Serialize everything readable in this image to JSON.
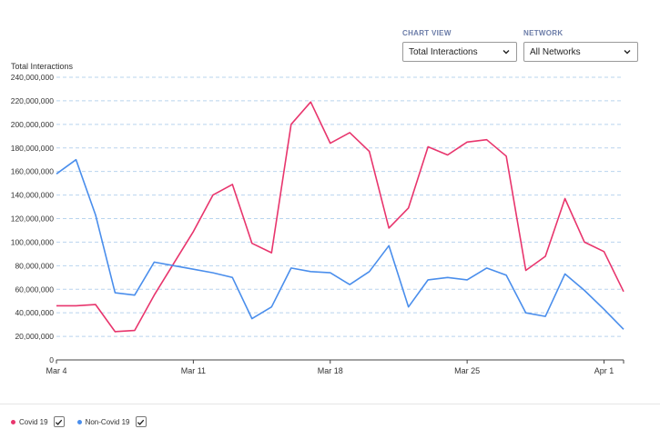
{
  "controls": {
    "chart_view": {
      "label": "CHART VIEW",
      "value": "Total Interactions"
    },
    "network": {
      "label": "NETWORK",
      "value": "All Networks"
    }
  },
  "chart_data": {
    "type": "line",
    "ylabel": "Total Interactions",
    "ylim": [
      0,
      240000000
    ],
    "yticks": [
      0,
      20000000,
      40000000,
      60000000,
      80000000,
      100000000,
      120000000,
      140000000,
      160000000,
      180000000,
      200000000,
      220000000,
      240000000
    ],
    "ytick_labels": [
      "0",
      "20,000,000",
      "40,000,000",
      "60,000,000",
      "80,000,000",
      "100,000,000",
      "120,000,000",
      "140,000,000",
      "160,000,000",
      "180,000,000",
      "200,000,000",
      "220,000,000",
      "240,000,000"
    ],
    "x": [
      "Mar 4",
      "Mar 5",
      "Mar 6",
      "Mar 7",
      "Mar 8",
      "Mar 9",
      "Mar 10",
      "Mar 11",
      "Mar 12",
      "Mar 13",
      "Mar 14",
      "Mar 15",
      "Mar 16",
      "Mar 17",
      "Mar 18",
      "Mar 19",
      "Mar 20",
      "Mar 21",
      "Mar 22",
      "Mar 23",
      "Mar 24",
      "Mar 25",
      "Mar 26",
      "Mar 27",
      "Mar 28",
      "Mar 29",
      "Mar 30",
      "Mar 31",
      "Apr 1",
      "Apr 2"
    ],
    "xtick_labels": [
      {
        "index": 0,
        "label": "Mar 4"
      },
      {
        "index": 7,
        "label": "Mar 11"
      },
      {
        "index": 14,
        "label": "Mar 18"
      },
      {
        "index": 21,
        "label": "Mar 25"
      },
      {
        "index": 28,
        "label": "Apr 1"
      }
    ],
    "grid": true,
    "legend_position": "bottom-left",
    "series": [
      {
        "name": "Covid 19",
        "color": "#e8356d",
        "values": [
          46000000,
          46000000,
          47000000,
          24000000,
          25000000,
          55000000,
          82000000,
          109000000,
          140000000,
          149000000,
          99000000,
          91000000,
          200000000,
          219000000,
          184000000,
          193000000,
          177000000,
          112000000,
          129000000,
          181000000,
          174000000,
          185000000,
          187000000,
          173000000,
          76000000,
          88000000,
          137000000,
          100000000,
          92000000,
          58000000
        ]
      },
      {
        "name": "Non-Covid 19",
        "color": "#4a8eec",
        "values": [
          158000000,
          170000000,
          123000000,
          57000000,
          55000000,
          83000000,
          80000000,
          77000000,
          74000000,
          70000000,
          35000000,
          45000000,
          78000000,
          75000000,
          74000000,
          64000000,
          75000000,
          97000000,
          45000000,
          68000000,
          70000000,
          68000000,
          78000000,
          72000000,
          40000000,
          37000000,
          73000000,
          59000000,
          43000000,
          26000000
        ]
      }
    ]
  }
}
